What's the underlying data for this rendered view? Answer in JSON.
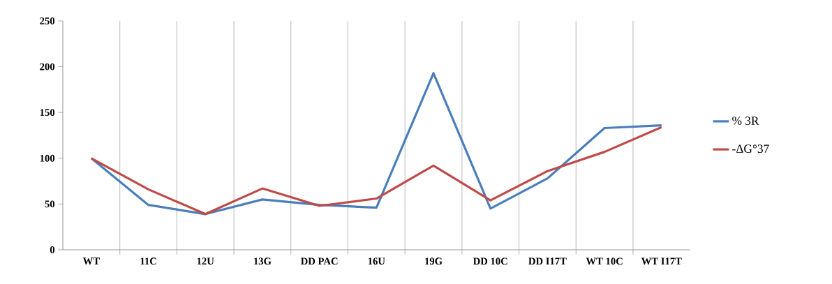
{
  "chart_data": {
    "type": "line",
    "categories": [
      "WT",
      "11C",
      "12U",
      "13G",
      "DD PAC",
      "16U",
      "19G",
      "DD 10C",
      "DD I17T",
      "WT 10C",
      "WT I17T"
    ],
    "series": [
      {
        "name": "% 3R",
        "color": "#4a7ebb",
        "values": [
          100,
          49,
          39,
          55,
          49,
          46,
          193,
          45,
          78,
          133,
          136
        ]
      },
      {
        "name": "-ΔG°37",
        "color": "#be4b48",
        "values": [
          100,
          66,
          39,
          67,
          48,
          56,
          92,
          54,
          86,
          107,
          134
        ]
      }
    ],
    "ylim": [
      0,
      250
    ],
    "yticks": [
      0,
      50,
      100,
      150,
      200,
      250
    ],
    "grid": "x",
    "legend": "right",
    "marker": "none",
    "line_style": "solid"
  }
}
